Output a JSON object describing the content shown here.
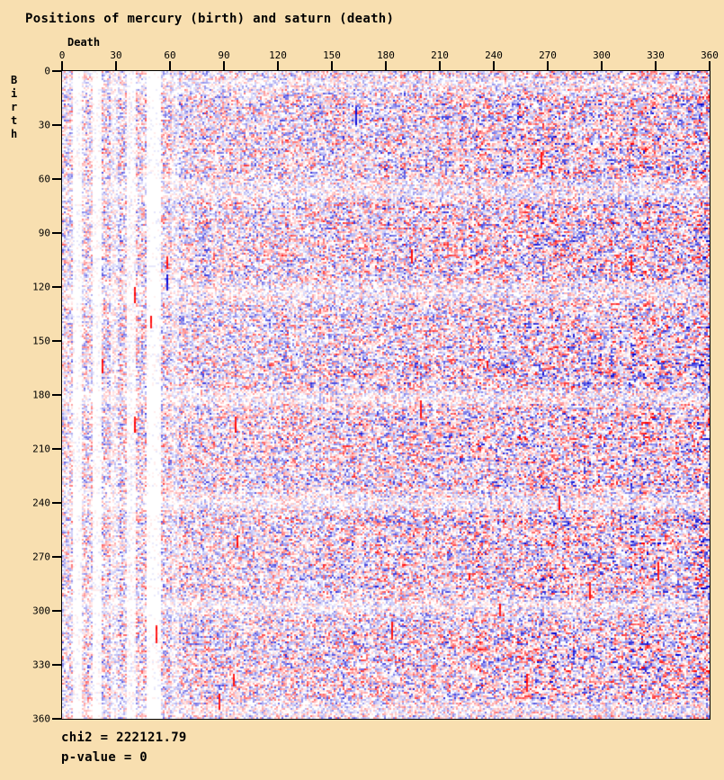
{
  "page": {
    "background_color": "#F8DFB0",
    "text_color": "#000000"
  },
  "chart_data": {
    "type": "heatmap",
    "title": "Positions of mercury (birth) and saturn (death)",
    "xlabel": "Death",
    "ylabel": "Birth",
    "x_ticks": [
      0,
      30,
      60,
      90,
      120,
      150,
      180,
      210,
      240,
      270,
      300,
      330,
      360
    ],
    "y_ticks": [
      0,
      30,
      60,
      90,
      120,
      150,
      180,
      210,
      240,
      270,
      300,
      330,
      360
    ],
    "x_range": [
      0,
      360
    ],
    "y_range": [
      0,
      360
    ],
    "y_direction": "down",
    "grid": {
      "cols": 360,
      "rows": 360
    },
    "legend": "none",
    "plot_border_color": "#000000",
    "colormap": {
      "description": "diverging residual map: red = positive residual, blue = negative residual, white = near zero; saturation proportional to magnitude",
      "positive_max": "#FF0000",
      "negative_max": "#0000D4",
      "zero": "#FFFFFF"
    },
    "stats": {
      "chi2": 222121.79,
      "p_value": 0
    },
    "stats_lines": {
      "chi2": "chi2 = 222121.79",
      "p_value": "p-value = 0"
    },
    "render_model": {
      "note": "129600 cell values are unreadable individually; field regenerated with seeded PRNG matching observed structure",
      "seed": 1234567,
      "magnitude_exponent": 1.9,
      "autocorrelation": 0.2,
      "base_density": 0.6,
      "right_ramp": 0.35,
      "column_jitter": 0.3,
      "column_sign_bias": 0.22,
      "row_sign_bias": 0.18,
      "row_band_period": 29,
      "row_band_depth": 0.45,
      "light_column_bands": [
        {
          "from": 6,
          "to": 10,
          "factor": 0.16
        },
        {
          "from": 17,
          "to": 21,
          "factor": 0.16
        },
        {
          "from": 27,
          "to": 30,
          "factor": 0.5
        },
        {
          "from": 36,
          "to": 40,
          "factor": 0.22
        },
        {
          "from": 47,
          "to": 54,
          "factor": 0.13
        },
        {
          "from": 61,
          "to": 64,
          "factor": 0.55
        }
      ],
      "accent_strokes": {
        "count": 24,
        "red_probability": 0.8,
        "min_len": 4,
        "max_len": 11
      },
      "white_threshold": 0.06
    }
  }
}
